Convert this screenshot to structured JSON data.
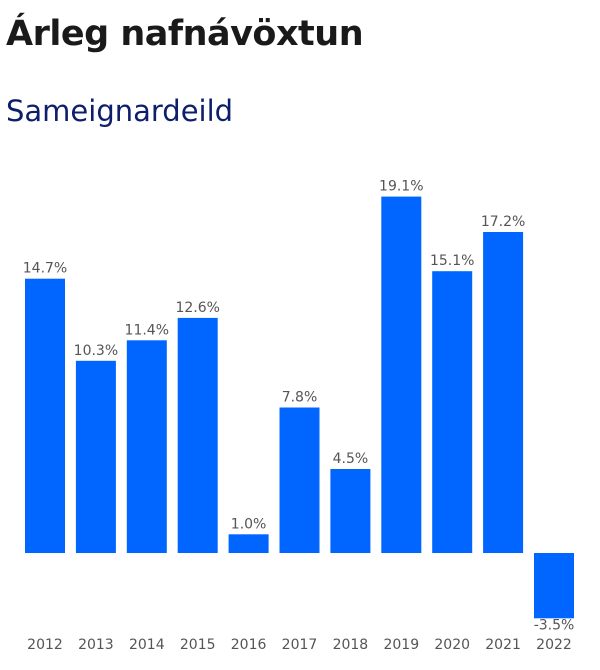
{
  "title": "Árleg nafnávöxtun",
  "subtitle": "Sameignardeild",
  "colors": {
    "bar": "#0066ff",
    "label": "#555555",
    "title": "#1a1a1a",
    "subtitle": "#0d1f6b"
  },
  "chart_data": {
    "type": "bar",
    "title": "Árleg nafnávöxtun",
    "subtitle": "Sameignardeild",
    "categories": [
      "2012",
      "2013",
      "2014",
      "2015",
      "2016",
      "2017",
      "2018",
      "2019",
      "2020",
      "2021",
      "2022"
    ],
    "values": [
      14.7,
      10.3,
      11.4,
      12.6,
      1.0,
      7.8,
      4.5,
      19.1,
      15.1,
      17.2,
      -3.5
    ],
    "value_labels": [
      "14.7%",
      "10.3%",
      "11.4%",
      "12.6%",
      "1.0%",
      "7.8%",
      "4.5%",
      "19.1%",
      "15.1%",
      "17.2%",
      "-3.5%"
    ],
    "unit": "%",
    "xlabel": "",
    "ylabel": "",
    "grid": false,
    "legend": "none"
  }
}
